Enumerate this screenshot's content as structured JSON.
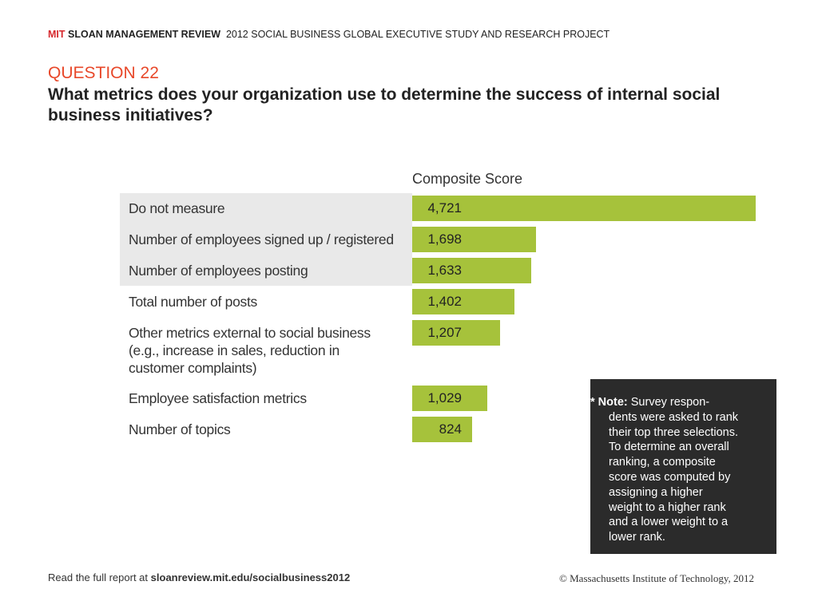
{
  "header": {
    "brand_red": "MIT",
    "brand": "SLOAN MANAGEMENT REVIEW",
    "project": "2012 SOCIAL BUSINESS GLOBAL EXECUTIVE STUDY AND RESEARCH PROJECT"
  },
  "question": {
    "label": "QUESTION 22",
    "text": "What metrics does your organization use to determine the success of internal social business initiatives?"
  },
  "chart_data": {
    "type": "bar",
    "orientation": "horizontal",
    "value_title": "Composite Score",
    "categories": [
      "Do not measure",
      "Number of employees signed up / registered",
      "Number of employees posting",
      "Total number of posts",
      "Other metrics external to social business (e.g., increase in sales, reduction in customer complaints)",
      "Employee satisfaction metrics",
      "Number of topics"
    ],
    "values": [
      4721,
      1698,
      1633,
      1402,
      1207,
      1029,
      824
    ],
    "value_labels": [
      "4,721",
      "1,698",
      "1,633",
      "1,402",
      "1,207",
      "1,029",
      "824"
    ],
    "color": "#a6c23b"
  },
  "note": {
    "label": "* Note:",
    "lines": [
      "Survey respon-",
      "dents were asked to rank",
      "their top three selections.",
      "To determine an overall",
      "ranking, a composite",
      "score was computed by",
      "assigning a higher",
      "weight to a higher rank",
      "and a lower weight to a",
      "lower rank."
    ]
  },
  "footer": {
    "prefix": "Read the full report at",
    "link": "sloanreview.mit.edu/socialbusiness2012",
    "copyright": "© Massachusetts Institute of Technology, 2012"
  }
}
